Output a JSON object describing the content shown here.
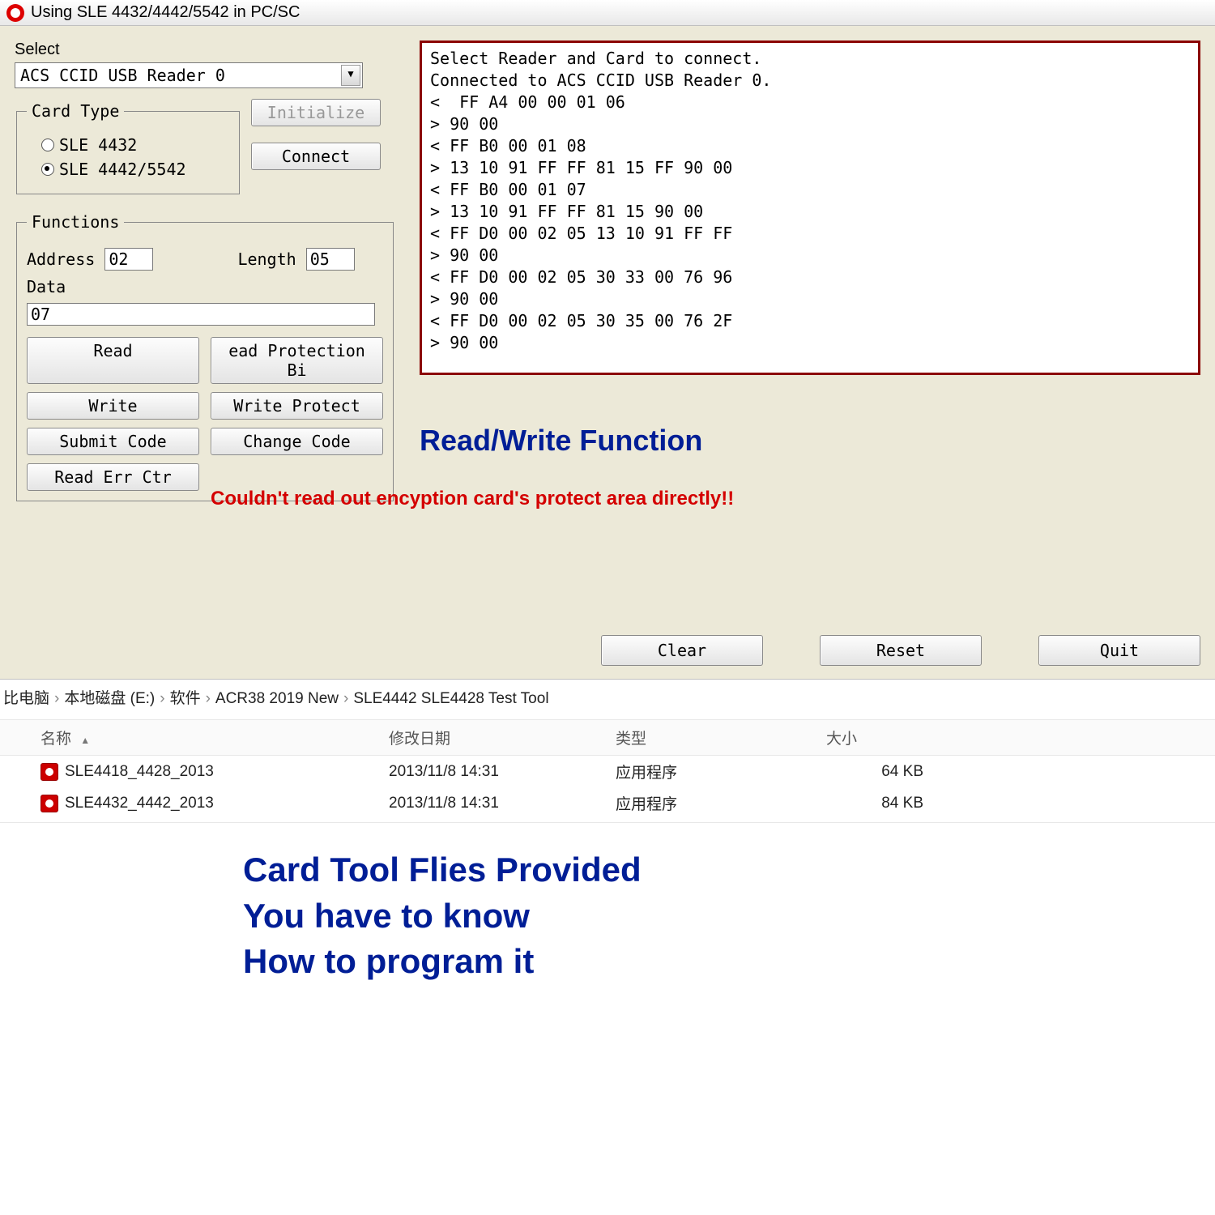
{
  "window": {
    "title": "Using SLE 4432/4442/5542 in PC/SC"
  },
  "select": {
    "label": "Select",
    "value": "ACS CCID USB Reader 0"
  },
  "cardtype": {
    "legend": "Card Type",
    "opt1": "SLE 4432",
    "opt2": "SLE 4442/5542",
    "selected": "opt2"
  },
  "sidebtns": {
    "initialize": "Initialize",
    "connect": "Connect"
  },
  "functions": {
    "legend": "Functions",
    "address_label": "Address",
    "address_value": "02",
    "length_label": "Length",
    "length_value": "05",
    "data_label": "Data",
    "data_value": "07",
    "read": "Read",
    "read_prot": "ead Protection Bi",
    "write": "Write",
    "write_prot": "Write Protect",
    "submit": "Submit Code",
    "change": "Change Code",
    "read_err": "Read Err Ctr"
  },
  "log_lines": [
    "Select Reader and Card to connect.",
    "Connected to ACS CCID USB Reader 0.",
    "<  FF A4 00 00 01 06",
    "> 90 00",
    "< FF B0 00 01 08",
    "> 13 10 91 FF FF 81 15 FF 90 00",
    "< FF B0 00 01 07",
    "> 13 10 91 FF FF 81 15 90 00",
    "< FF D0 00 02 05 13 10 91 FF FF",
    "> 90 00",
    "< FF D0 00 02 05 30 33 00 76 96",
    "> 90 00",
    "< FF D0 00 02 05 30 35 00 76 2F",
    "> 90 00"
  ],
  "annotations": {
    "rw_title": "Read/Write Function",
    "warning": "Couldn't read out encyption card's protect area directly!!",
    "tools_l1": "Card Tool Flies Provided",
    "tools_l2": "You have to know",
    "tools_l3": "How to program it"
  },
  "bottom": {
    "clear": "Clear",
    "reset": "Reset",
    "quit": "Quit"
  },
  "explorer": {
    "crumbs": [
      "比电脑",
      "本地磁盘 (E:)",
      "软件",
      "ACR38 2019 New",
      "SLE4442 SLE4428 Test Tool"
    ],
    "columns": {
      "name": "名称",
      "date": "修改日期",
      "type": "类型",
      "size": "大小"
    },
    "files": [
      {
        "name": "SLE4418_4428_2013",
        "date": "2013/11/8 14:31",
        "type": "应用程序",
        "size": "64 KB"
      },
      {
        "name": "SLE4432_4442_2013",
        "date": "2013/11/8 14:31",
        "type": "应用程序",
        "size": "84 KB"
      }
    ]
  },
  "colors": {
    "panel_bg": "#ece9d8",
    "log_border": "#8b0000",
    "accent_blue": "#001e96",
    "accent_red": "#d40000"
  }
}
